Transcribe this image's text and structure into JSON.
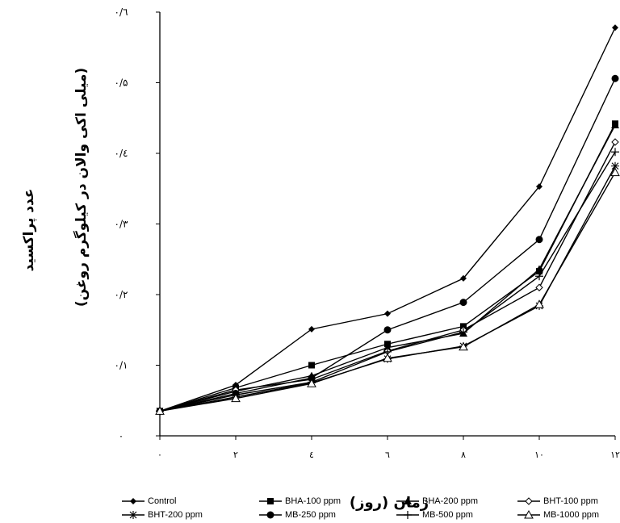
{
  "chart_data": {
    "type": "line",
    "ylabel_line1": "عدد پراکسید",
    "ylabel_line2": "(میلی اکی والان در کیلوگرم روغن)",
    "xlabel": "زمان (روز)",
    "x": [
      0,
      2,
      4,
      6,
      8,
      10,
      12
    ],
    "x_tick_labels": [
      "۰",
      "۲",
      "٤",
      "٦",
      "۸",
      "۱۰",
      "۱۲"
    ],
    "y_tick_labels": [
      "۰",
      "۰/۱",
      "۰/۲",
      "۰/۳",
      "۰/٤",
      "۰/۵",
      "۰/٦"
    ],
    "ylim": [
      0,
      0.6
    ],
    "xlim": [
      0,
      12
    ],
    "grid": false,
    "legend_position": "bottom",
    "series": [
      {
        "name": "Control",
        "marker": "diamond-filled",
        "values": [
          0.035,
          0.072,
          0.151,
          0.173,
          0.223,
          0.353,
          0.578
        ]
      },
      {
        "name": "BHA-100 ppm",
        "marker": "square-filled",
        "values": [
          0.035,
          0.068,
          0.1,
          0.13,
          0.155,
          0.233,
          0.442
        ]
      },
      {
        "name": "BHA-200 ppm",
        "marker": "triangle-filled",
        "values": [
          0.035,
          0.063,
          0.085,
          0.125,
          0.145,
          0.236,
          0.44
        ]
      },
      {
        "name": "BHT-100 ppm",
        "marker": "diamond-open",
        "values": [
          0.035,
          0.065,
          0.08,
          0.12,
          0.15,
          0.21,
          0.416
        ]
      },
      {
        "name": "BHT-200 ppm",
        "marker": "asterisk",
        "values": [
          0.035,
          0.055,
          0.075,
          0.109,
          0.127,
          0.184,
          0.382
        ]
      },
      {
        "name": "MB-250 ppm",
        "marker": "circle-filled",
        "values": [
          0.035,
          0.06,
          0.082,
          0.15,
          0.189,
          0.278,
          0.506
        ]
      },
      {
        "name": "MB-500 ppm",
        "marker": "plus",
        "values": [
          0.035,
          0.058,
          0.076,
          0.119,
          0.147,
          0.226,
          0.402
        ]
      },
      {
        "name": "MB-1000 ppm",
        "marker": "triangle-open",
        "values": [
          0.035,
          0.053,
          0.074,
          0.11,
          0.126,
          0.186,
          0.373
        ]
      }
    ]
  }
}
